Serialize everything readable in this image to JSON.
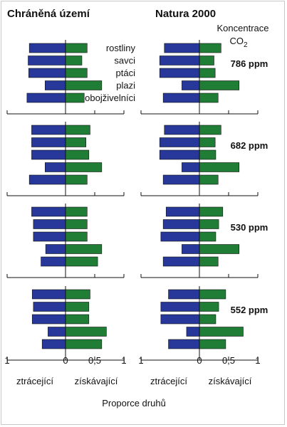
{
  "chart_data": [
    {
      "type": "bar",
      "orientation": "horizontal-diverging",
      "title": "Chráněná území",
      "categories": [
        "rostliny",
        "savci",
        "ptáci",
        "plazi",
        "obojživelníci"
      ],
      "xlim": [
        -1,
        1
      ],
      "xticks": [
        "1",
        "0",
        "0,5",
        "1"
      ],
      "xticks_at": [
        -1,
        0,
        0.5,
        1
      ],
      "xlabel_left": "ztrácející",
      "xlabel_right": "získávající",
      "panels": [
        {
          "concentration": "786 ppm",
          "series": [
            {
              "name": "ztrácející",
              "color": "#27389a",
              "values": [
                -0.62,
                -0.64,
                -0.63,
                -0.35,
                -0.66
              ]
            },
            {
              "name": "získávající",
              "color": "#1f7d35",
              "values": [
                0.37,
                0.28,
                0.37,
                0.62,
                0.32
              ]
            }
          ]
        },
        {
          "concentration": "682 ppm",
          "series": [
            {
              "name": "ztrácející",
              "color": "#27389a",
              "values": [
                -0.58,
                -0.58,
                -0.58,
                -0.35,
                -0.62
              ]
            },
            {
              "name": "získávající",
              "color": "#1f7d35",
              "values": [
                0.42,
                0.35,
                0.4,
                0.62,
                0.37
              ]
            }
          ]
        },
        {
          "concentration": "530 ppm",
          "series": [
            {
              "name": "ztrácející",
              "color": "#27389a",
              "values": [
                -0.58,
                -0.55,
                -0.55,
                -0.34,
                -0.42
              ]
            },
            {
              "name": "získávající",
              "color": "#1f7d35",
              "values": [
                0.37,
                0.37,
                0.37,
                0.62,
                0.55
              ]
            }
          ]
        },
        {
          "concentration": "552 ppm",
          "series": [
            {
              "name": "ztrácející",
              "color": "#27389a",
              "values": [
                -0.57,
                -0.55,
                -0.57,
                -0.3,
                -0.4
              ]
            },
            {
              "name": "získávající",
              "color": "#1f7d35",
              "values": [
                0.42,
                0.4,
                0.4,
                0.7,
                0.62
              ]
            }
          ]
        }
      ]
    },
    {
      "type": "bar",
      "orientation": "horizontal-diverging",
      "title": "Natura 2000",
      "categories": [
        "rostliny",
        "savci",
        "ptáci",
        "plazi",
        "obojživelníci"
      ],
      "xlim": [
        -1,
        1
      ],
      "xticks": [
        "1",
        "0",
        "0,5",
        "1"
      ],
      "xticks_at": [
        -1,
        0,
        0.5,
        1
      ],
      "xlabel_left": "ztrácející",
      "xlabel_right": "získávající",
      "panels": [
        {
          "concentration": "786 ppm",
          "series": [
            {
              "name": "ztrácející",
              "color": "#27389a",
              "values": [
                -0.6,
                -0.68,
                -0.68,
                -0.3,
                -0.62
              ]
            },
            {
              "name": "získávající",
              "color": "#1f7d35",
              "values": [
                0.37,
                0.25,
                0.27,
                0.68,
                0.32
              ]
            }
          ]
        },
        {
          "concentration": "682 ppm",
          "series": [
            {
              "name": "ztrácející",
              "color": "#27389a",
              "values": [
                -0.6,
                -0.68,
                -0.68,
                -0.3,
                -0.62
              ]
            },
            {
              "name": "získávající",
              "color": "#1f7d35",
              "values": [
                0.37,
                0.27,
                0.28,
                0.68,
                0.32
              ]
            }
          ]
        },
        {
          "concentration": "530 ppm",
          "series": [
            {
              "name": "ztrácející",
              "color": "#27389a",
              "values": [
                -0.57,
                -0.62,
                -0.66,
                -0.3,
                -0.62
              ]
            },
            {
              "name": "získávající",
              "color": "#1f7d35",
              "values": [
                0.4,
                0.33,
                0.28,
                0.68,
                0.32
              ]
            }
          ]
        },
        {
          "concentration": "552 ppm",
          "series": [
            {
              "name": "ztrácející",
              "color": "#27389a",
              "values": [
                -0.53,
                -0.66,
                -0.66,
                -0.22,
                -0.53
              ]
            },
            {
              "name": "získávající",
              "color": "#1f7d35",
              "values": [
                0.45,
                0.33,
                0.28,
                0.75,
                0.45
              ]
            }
          ]
        }
      ]
    }
  ],
  "legend_title": "Koncentrace",
  "legend_formula": "CO",
  "legend_subscript": "2",
  "common_xlabel": "Proporce druhů"
}
